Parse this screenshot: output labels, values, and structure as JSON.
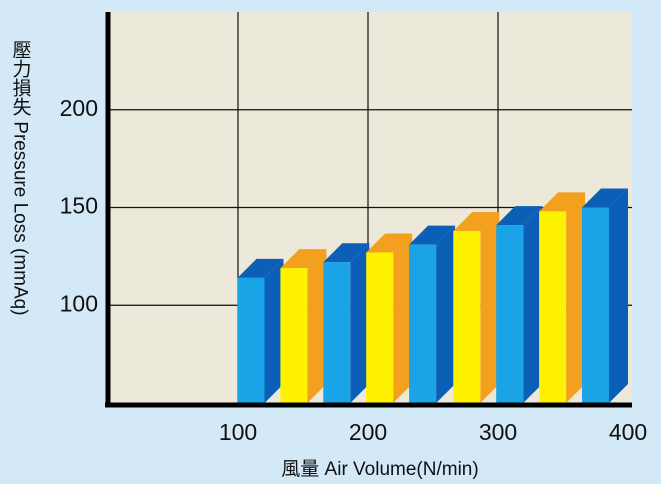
{
  "chart_data": {
    "type": "bar3d",
    "xlabel": "風量 Air Volume(N/min)",
    "ylabel": "壓力損失 Pressure Loss (mmAq)",
    "xlim": [
      0,
      400
    ],
    "xticks": [
      100,
      200,
      300,
      400
    ],
    "ylim": [
      50,
      250
    ],
    "yticks": [
      100,
      150,
      200
    ],
    "grid": true,
    "series": [
      {
        "color": "#1aa3e6",
        "side_color": "#0b5fb6",
        "x": [
          110,
          176,
          242,
          309,
          375
        ],
        "values": [
          114,
          122,
          131,
          141,
          150
        ]
      },
      {
        "color": "#fff200",
        "side_color": "#f2a01e",
        "x": [
          143,
          209,
          276,
          342
        ],
        "values": [
          119,
          127,
          138,
          148
        ]
      }
    ]
  }
}
